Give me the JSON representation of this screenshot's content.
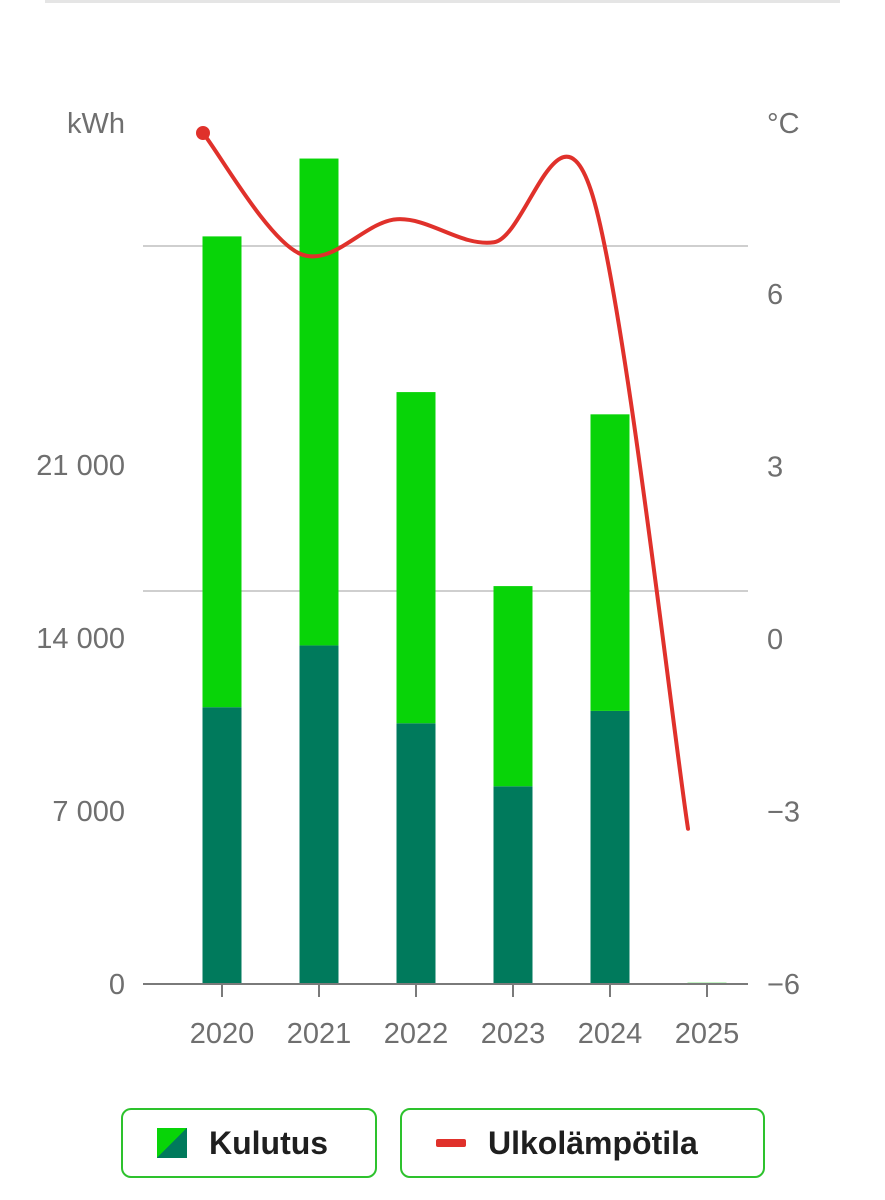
{
  "chart_data": {
    "type": "bar",
    "stacked": true,
    "categories": [
      "2020",
      "2021",
      "2022",
      "2023",
      "2024",
      "2025"
    ],
    "series": [
      {
        "name": "Kulutus (base)",
        "color": "#007a5c",
        "values": [
          11200,
          13700,
          10550,
          8000,
          11050,
          0
        ]
      },
      {
        "name": "Kulutus (top)",
        "color": "#08d408",
        "values": [
          19050,
          19700,
          13400,
          8100,
          12000,
          50
        ]
      }
    ],
    "line_series": {
      "name": "Ulkolämpötila",
      "color": "#e0312b",
      "values": [
        8.8,
        6.7,
        7.3,
        6.9,
        7.8,
        -3.3
      ]
    },
    "y_left": {
      "unit": "kWh",
      "min": 0,
      "max": 35000,
      "ticks": [
        0,
        7000,
        14000,
        21000
      ],
      "tick_labels": [
        "0",
        "7 000",
        "14 000",
        "21 000"
      ]
    },
    "y_right": {
      "unit": "°C",
      "min": -6,
      "max": 12,
      "ticks": [
        -6,
        -3,
        0,
        3,
        6
      ],
      "tick_labels": [
        "−6",
        "−3",
        "0",
        "3",
        "6"
      ]
    },
    "gridlines_at_right": [
      0,
      6
    ]
  },
  "legend": {
    "items": [
      {
        "label": "Kulutus"
      },
      {
        "label": "Ulkolämpötila"
      }
    ]
  }
}
